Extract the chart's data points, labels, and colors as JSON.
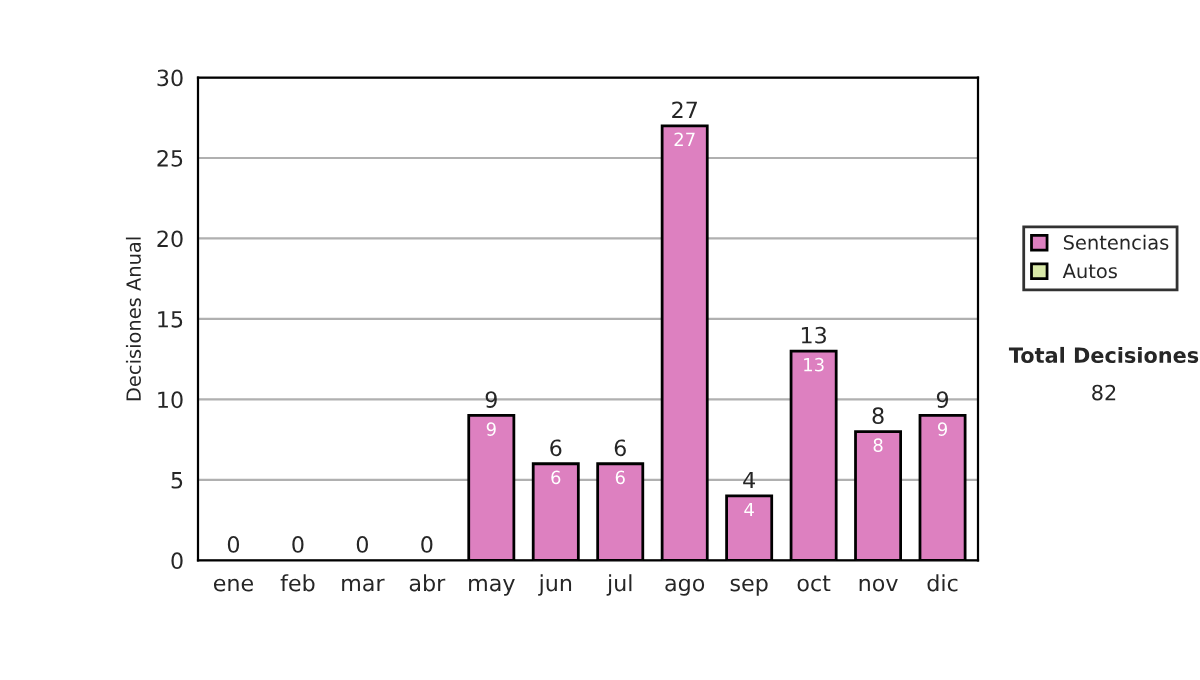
{
  "chart_data": {
    "type": "bar",
    "ylabel": "Decisiones Anual",
    "stacked": true,
    "categories": [
      "ene",
      "feb",
      "mar",
      "abr",
      "may",
      "jun",
      "jul",
      "ago",
      "sep",
      "oct",
      "nov",
      "dic"
    ],
    "series": [
      {
        "name": "Sentencias",
        "color": "#dd80c0",
        "values": [
          0,
          0,
          0,
          0,
          9,
          6,
          6,
          27,
          4,
          13,
          8,
          9
        ],
        "value_labels": [
          null,
          null,
          null,
          null,
          "9",
          "6",
          "6",
          "27",
          "4",
          "13",
          "8",
          "9"
        ]
      },
      {
        "name": "Autos",
        "color": "#d8e8a8",
        "values": [
          0,
          0,
          0,
          0,
          0,
          0,
          0,
          0,
          0,
          0,
          0,
          0
        ]
      }
    ],
    "totals": [
      "0",
      "0",
      "0",
      "0",
      "9",
      "6",
      "6",
      "27",
      "4",
      "13",
      "8",
      "9"
    ],
    "ylim": [
      0,
      30
    ],
    "yticks": [
      0,
      5,
      10,
      15,
      20,
      25,
      30
    ],
    "grid": "y",
    "legend": "right",
    "annotations": [
      "Total Decisiones",
      "82"
    ]
  }
}
